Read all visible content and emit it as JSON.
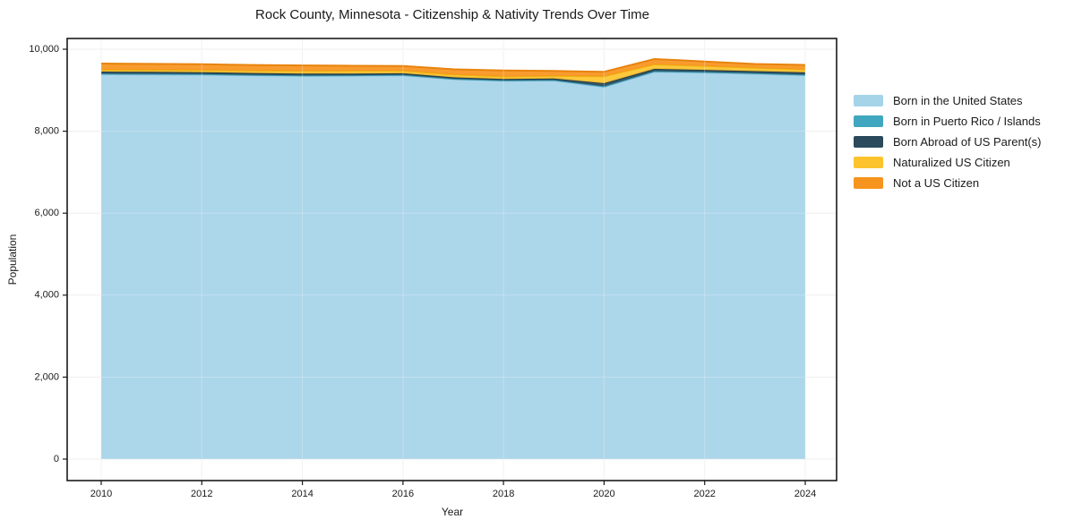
{
  "chart_data": {
    "type": "area",
    "stacked": true,
    "title": "Rock County, Minnesota - Citizenship & Nativity Trends Over Time",
    "xlabel": "Year",
    "ylabel": "Population",
    "x": [
      2010,
      2011,
      2012,
      2013,
      2014,
      2015,
      2016,
      2017,
      2018,
      2019,
      2020,
      2021,
      2022,
      2023,
      2024
    ],
    "xtick_labels": [
      "2010",
      "2012",
      "2014",
      "2016",
      "2018",
      "2020",
      "2022",
      "2024"
    ],
    "xticks": [
      2010,
      2012,
      2014,
      2016,
      2018,
      2020,
      2022,
      2024
    ],
    "yticks": [
      0,
      2000,
      4000,
      6000,
      8000,
      10000
    ],
    "ytick_labels": [
      "0",
      "2,000",
      "4,000",
      "6,000",
      "8,000",
      "10,000"
    ],
    "ylim": [
      0,
      10000
    ],
    "grid": true,
    "legend_position": "right-outside",
    "background_color": "#ffffff",
    "axis_border_color": "#1a1a1a",
    "series": [
      {
        "name": "Born in the United States",
        "color": "#a5d3e8",
        "edge_color": "#8bc3dc",
        "values": [
          9390,
          9385,
          9378,
          9365,
          9350,
          9355,
          9365,
          9270,
          9230,
          9240,
          9080,
          9450,
          9430,
          9400,
          9365
        ]
      },
      {
        "name": "Born in Puerto Rico / Islands",
        "color": "#41a6bf",
        "edge_color": "#3795ad",
        "values": [
          15,
          15,
          15,
          10,
          10,
          10,
          10,
          10,
          10,
          10,
          15,
          15,
          15,
          15,
          15
        ]
      },
      {
        "name": "Born Abroad of US Parent(s)",
        "color": "#2b4a5c",
        "edge_color": "#223d4c",
        "values": [
          50,
          48,
          45,
          45,
          45,
          40,
          38,
          35,
          35,
          35,
          75,
          55,
          50,
          50,
          55
        ]
      },
      {
        "name": "Naturalized US Citizen",
        "color": "#fcc32d",
        "edge_color": "#edb112",
        "values": [
          45,
          50,
          55,
          60,
          65,
          70,
          62,
          70,
          60,
          65,
          170,
          110,
          95,
          80,
          70
        ]
      },
      {
        "name": "Not a US Citizen",
        "color": "#f7941e",
        "edge_color": "#e8830d",
        "values": [
          150,
          145,
          140,
          135,
          135,
          120,
          115,
          125,
          145,
          120,
          110,
          130,
          110,
          95,
          110
        ]
      }
    ]
  }
}
